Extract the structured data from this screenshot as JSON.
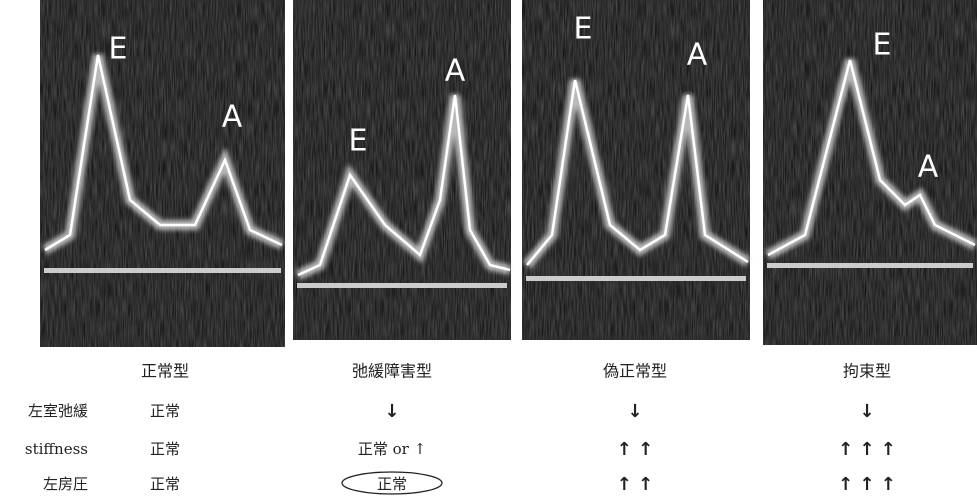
{
  "panels": [
    {
      "title": "正常型",
      "labels": [
        "E",
        "A"
      ]
    },
    {
      "title": "弛緩障害型",
      "labels": [
        "E",
        "A"
      ]
    },
    {
      "title": "偽正常型",
      "labels": [
        "E",
        "A"
      ]
    },
    {
      "title": "拘束型",
      "labels": [
        "E",
        "A"
      ]
    }
  ],
  "rows": [
    {
      "label": "左室弛緩",
      "cells": [
        "正常",
        "↓",
        "↓",
        "↓"
      ]
    },
    {
      "label": "stiffness",
      "cells": [
        "正常",
        "正常 or ↑",
        "↑ ↑",
        "↑ ↑ ↑"
      ]
    },
    {
      "label": "左房圧",
      "cells": [
        "正常",
        "正常",
        "↑ ↑",
        "↑ ↑ ↑"
      ]
    }
  ]
}
